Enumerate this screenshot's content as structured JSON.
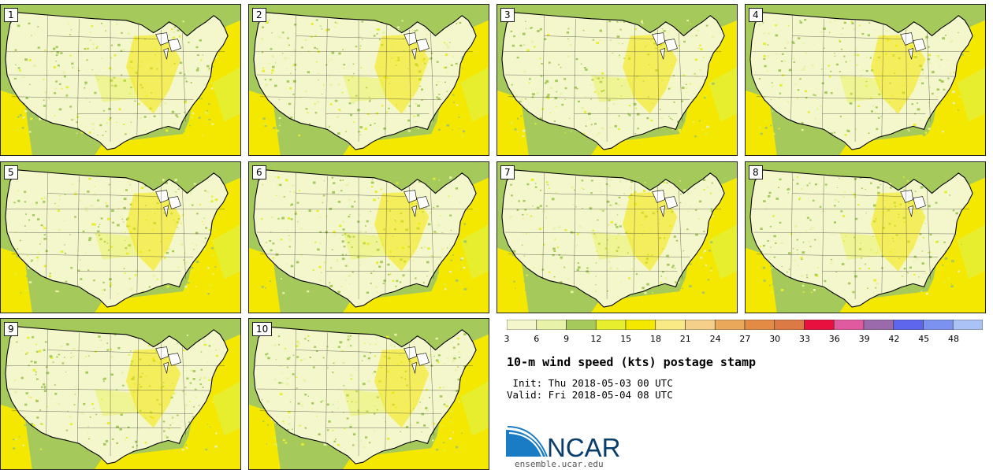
{
  "panels": [
    {
      "label": "1"
    },
    {
      "label": "2"
    },
    {
      "label": "3"
    },
    {
      "label": "4"
    },
    {
      "label": "5"
    },
    {
      "label": "6"
    },
    {
      "label": "7"
    },
    {
      "label": "8"
    },
    {
      "label": "9"
    },
    {
      "label": "10"
    }
  ],
  "colorbar": {
    "ticks": [
      "3",
      "6",
      "9",
      "12",
      "15",
      "18",
      "21",
      "24",
      "27",
      "30",
      "33",
      "36",
      "39",
      "42",
      "45",
      "48"
    ],
    "colors": [
      "#f4f7cc",
      "#e8f2a8",
      "#a6c95c",
      "#e6ee2e",
      "#f5e800",
      "#faea86",
      "#f5d08a",
      "#e9a85a",
      "#e38a45",
      "#dc7a45",
      "#e8103e",
      "#e05aa0",
      "#9a6aaa",
      "#5e66ee",
      "#7c92f0",
      "#aac2f6"
    ]
  },
  "title": "10-m wind speed (kts) postage stamp",
  "init_line": " Init: Thu 2018-05-03 00 UTC",
  "valid_line": "Valid: Fri 2018-05-04 08 UTC",
  "logo": {
    "text": "NCAR",
    "colors": {
      "wave": "#1a7cc4",
      "text": "#0b3d6b"
    }
  },
  "site": "ensemble.ucar.edu",
  "map_colors": {
    "land": "#f4f7cc",
    "light_green": "#e8f2a8",
    "green": "#a6c95c",
    "yellow": "#e6ee2e",
    "bright_yellow": "#f5e800",
    "light_yellow": "#faea86"
  }
}
